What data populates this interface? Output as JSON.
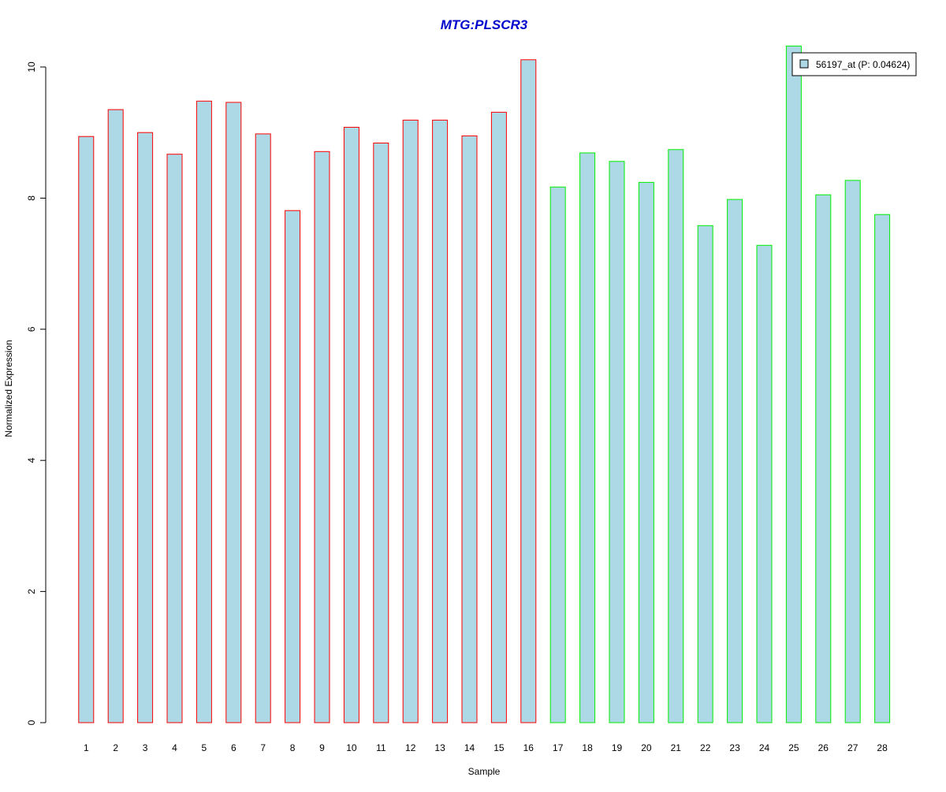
{
  "chart_data": {
    "type": "bar",
    "title": "MTG:PLSCR3",
    "xlabel": "Sample",
    "ylabel": "Normalized Expression",
    "categories": [
      "1",
      "2",
      "3",
      "4",
      "5",
      "6",
      "7",
      "8",
      "9",
      "10",
      "11",
      "12",
      "13",
      "14",
      "15",
      "16",
      "17",
      "18",
      "19",
      "20",
      "21",
      "22",
      "23",
      "24",
      "25",
      "26",
      "27",
      "28"
    ],
    "series": [
      {
        "name": "56197_at (P: 0.04624)",
        "values": [
          8.94,
          9.35,
          9.0,
          8.67,
          9.48,
          9.46,
          8.98,
          7.81,
          8.71,
          9.08,
          8.84,
          9.19,
          9.19,
          8.95,
          9.31,
          10.11,
          8.17,
          8.69,
          8.56,
          8.24,
          8.74,
          7.58,
          7.98,
          7.28,
          10.32,
          8.05,
          8.27,
          7.75
        ]
      }
    ],
    "groups": [
      {
        "from": 1,
        "to": 16,
        "border_color": "#ff0000"
      },
      {
        "from": 17,
        "to": 28,
        "border_color": "#00ee00"
      }
    ],
    "yticks": [
      0,
      2,
      4,
      6,
      8,
      10
    ],
    "ylim": [
      0,
      10.32
    ],
    "bar_fill": "#add8e6",
    "title_color": "#0000cc",
    "legend": {
      "label": "56197_at (P: 0.04624)",
      "placement": "top-right"
    },
    "grid": false
  }
}
